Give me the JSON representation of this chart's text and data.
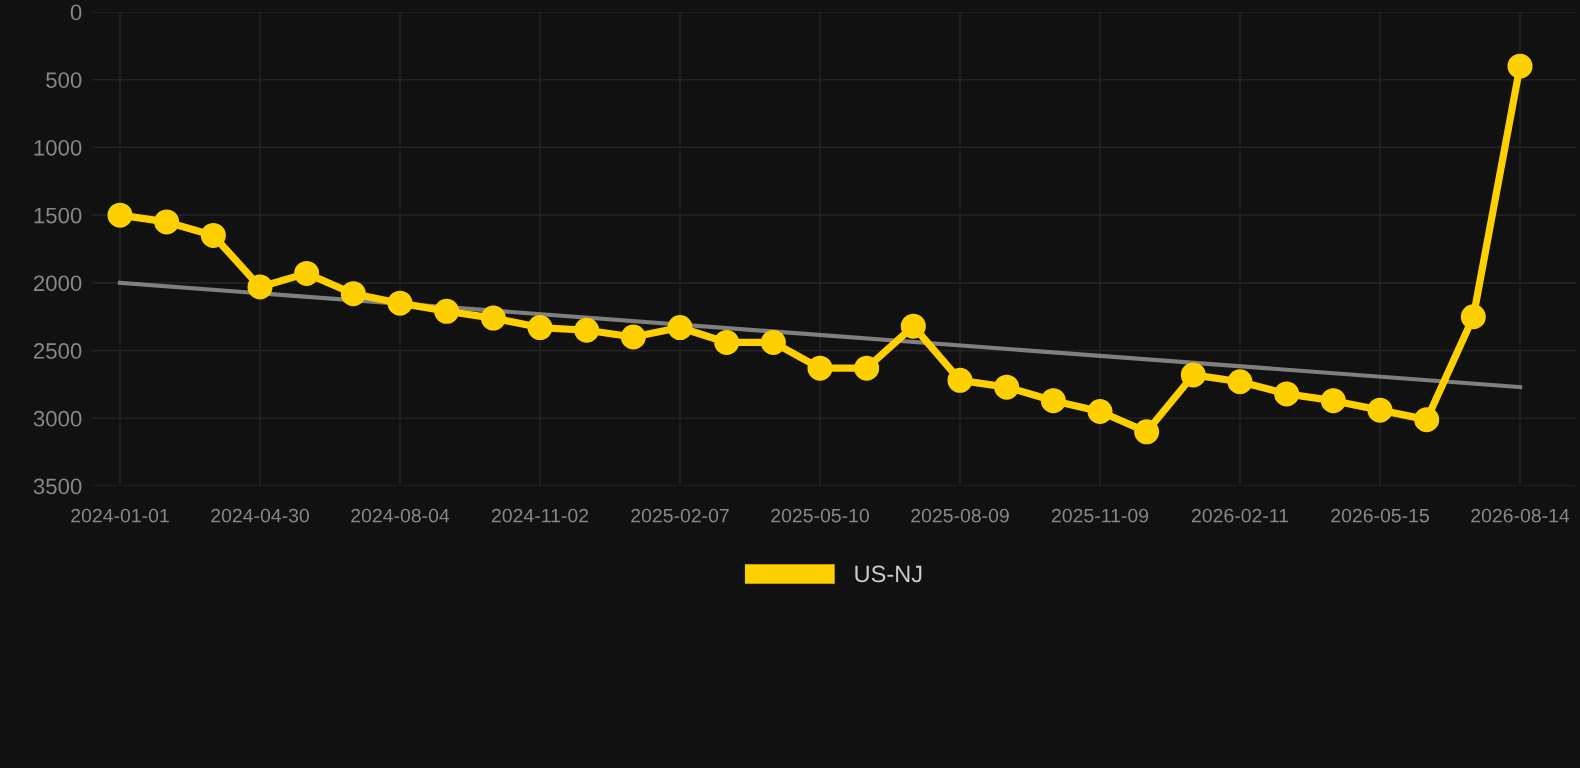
{
  "chart_data": {
    "type": "line",
    "categories": [
      "2024-01-01",
      null,
      null,
      "2024-04-30",
      null,
      null,
      "2024-08-04",
      null,
      null,
      "2024-11-02",
      null,
      null,
      "2025-02-07",
      null,
      null,
      "2025-05-10",
      null,
      null,
      "2025-08-09",
      null,
      null,
      "2025-11-09",
      null,
      null,
      "2026-02-11",
      null,
      null,
      "2026-05-15",
      null,
      null,
      "2026-08-14"
    ],
    "series": [
      {
        "name": "US-NJ",
        "color": "#ffd000",
        "marker": "circle",
        "values": [
          1500,
          1550,
          1650,
          2030,
          1930,
          2080,
          2150,
          2210,
          2260,
          2330,
          2350,
          2400,
          2330,
          2440,
          2440,
          2630,
          2630,
          2320,
          2720,
          2770,
          2870,
          2950,
          3100,
          2680,
          2730,
          2820,
          2870,
          2940,
          3010,
          2250,
          400
        ]
      },
      {
        "type": "line",
        "color": "#808080",
        "marker": "none",
        "values": [
          2000,
          null,
          null,
          null,
          null,
          null,
          null,
          null,
          null,
          null,
          null,
          null,
          null,
          null,
          null,
          null,
          null,
          null,
          null,
          null,
          null,
          null,
          null,
          null,
          null,
          null,
          null,
          null,
          null,
          null,
          2770
        ]
      }
    ],
    "ylim": [
      3500,
      0
    ],
    "yticks": [
      0,
      500,
      1000,
      1500,
      2000,
      2500,
      3000,
      3500
    ],
    "grid": true,
    "legend": "bottom",
    "line_style": "solid"
  }
}
